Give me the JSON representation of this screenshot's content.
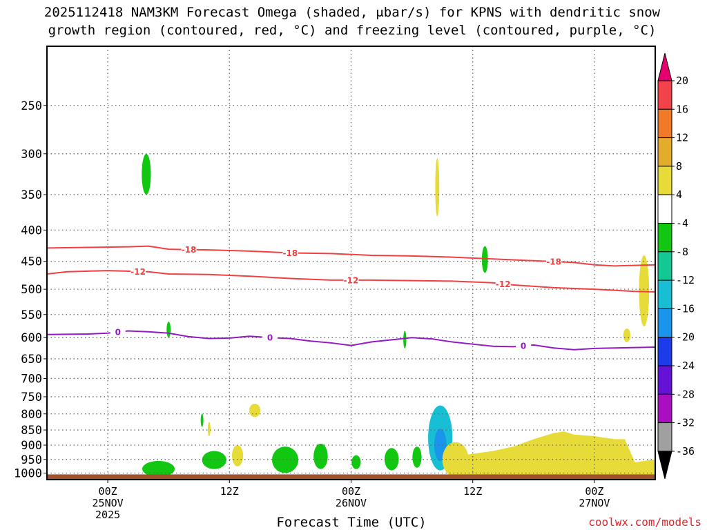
{
  "chart_data": {
    "type": "area",
    "title_line1": "2025112418 NAM3KM Forecast Omega (shaded, μbar/s) for KPNS with dendritic snow",
    "title_line2": "growth region (contoured, red, °C) and freezing level (contoured, purple, °C)",
    "xlabel": "Forecast Time (UTC)",
    "credit": "coolwx.com/models",
    "x_range_hours": [
      -6,
      54
    ],
    "y_scale": "log",
    "y_range_hPa": [
      200,
      1025
    ],
    "yticks": [
      250,
      300,
      350,
      400,
      450,
      500,
      550,
      600,
      650,
      700,
      750,
      800,
      850,
      900,
      950,
      1000
    ],
    "xticks": [
      {
        "hour": 0,
        "lines": [
          "00Z",
          "25NOV",
          "2025"
        ]
      },
      {
        "hour": 12,
        "lines": [
          "12Z"
        ]
      },
      {
        "hour": 24,
        "lines": [
          "00Z",
          "26NOV"
        ]
      },
      {
        "hour": 36,
        "lines": [
          "12Z"
        ]
      },
      {
        "hour": 48,
        "lines": [
          "00Z",
          "27NOV"
        ]
      }
    ],
    "grid": true,
    "colorbar": {
      "units": "μbar/s",
      "labels": [
        "20",
        "16",
        "12",
        "8",
        "4",
        "-4",
        "-8",
        "-12",
        "-16",
        "-20",
        "-24",
        "-28",
        "-32",
        "-36"
      ],
      "colors": [
        "#e5006e",
        "#f3434a",
        "#f07a27",
        "#e3ac2d",
        "#e6db38",
        "#ffffff",
        "#12c712",
        "#14c893",
        "#18bfd4",
        "#1b95ec",
        "#1c3cec",
        "#6413d6",
        "#a70fbf",
        "#a0a0a0",
        "#000000"
      ]
    },
    "contour_lines": [
      {
        "name": "-18",
        "color": "#f2403f",
        "points": [
          [
            -6,
            428
          ],
          [
            -2,
            427
          ],
          [
            2,
            426
          ],
          [
            4,
            425
          ],
          [
            6,
            430
          ],
          [
            10,
            431
          ],
          [
            14,
            433
          ],
          [
            18,
            436
          ],
          [
            22,
            437
          ],
          [
            26,
            440
          ],
          [
            30,
            441
          ],
          [
            34,
            443
          ],
          [
            38,
            446
          ],
          [
            42,
            449
          ],
          [
            46,
            452
          ],
          [
            48,
            456
          ],
          [
            50,
            458
          ],
          [
            54,
            456
          ]
        ],
        "labels_at_hours": [
          8,
          18,
          44
        ]
      },
      {
        "name": "-12",
        "color": "#f2403f",
        "points": [
          [
            -6,
            472
          ],
          [
            -4,
            468
          ],
          [
            0,
            466
          ],
          [
            4,
            468
          ],
          [
            6,
            472
          ],
          [
            10,
            473
          ],
          [
            14,
            476
          ],
          [
            18,
            480
          ],
          [
            22,
            483
          ],
          [
            26,
            483
          ],
          [
            30,
            484
          ],
          [
            34,
            485
          ],
          [
            38,
            488
          ],
          [
            40,
            492
          ],
          [
            44,
            497
          ],
          [
            48,
            500
          ],
          [
            52,
            504
          ],
          [
            54,
            505
          ]
        ],
        "labels_at_hours": [
          3,
          24,
          39
        ]
      },
      {
        "name": "0",
        "color": "#9418c4",
        "points": [
          [
            -6,
            593
          ],
          [
            -2,
            592
          ],
          [
            0,
            590
          ],
          [
            2,
            585
          ],
          [
            4,
            587
          ],
          [
            6,
            590
          ],
          [
            8,
            598
          ],
          [
            10,
            602
          ],
          [
            12,
            601
          ],
          [
            14,
            597
          ],
          [
            16,
            600
          ],
          [
            18,
            602
          ],
          [
            20,
            608
          ],
          [
            22,
            612
          ],
          [
            24,
            618
          ],
          [
            26,
            610
          ],
          [
            28,
            605
          ],
          [
            30,
            600
          ],
          [
            32,
            603
          ],
          [
            34,
            610
          ],
          [
            36,
            615
          ],
          [
            38,
            620
          ],
          [
            40,
            621
          ],
          [
            42,
            617
          ],
          [
            44,
            624
          ],
          [
            46,
            628
          ],
          [
            48,
            625
          ],
          [
            50,
            624
          ],
          [
            54,
            622
          ]
        ],
        "labels_at_hours": [
          1,
          16,
          41
        ]
      }
    ],
    "omega_regions": [
      {
        "value": -6,
        "color": "#12c712",
        "center": [
          3.8,
          330
        ],
        "half_width_h": 0.45,
        "span_hPa": [
          300,
          350
        ]
      },
      {
        "value": 5,
        "color": "#e6db38",
        "center": [
          32.5,
          340
        ],
        "half_width_h": 0.2,
        "span_hPa": [
          305,
          380
        ]
      },
      {
        "value": -6,
        "color": "#12c712",
        "center": [
          37.2,
          445
        ],
        "half_width_h": 0.3,
        "span_hPa": [
          425,
          470
        ]
      },
      {
        "value": 5,
        "color": "#e6db38",
        "center": [
          52.9,
          520
        ],
        "half_width_h": 0.5,
        "span_hPa": [
          440,
          575
        ]
      },
      {
        "value": 5,
        "color": "#e6db38",
        "center": [
          51.2,
          595
        ],
        "half_width_h": 0.35,
        "span_hPa": [
          580,
          610
        ]
      },
      {
        "value": -6,
        "color": "#12c712",
        "center": [
          6.0,
          580
        ],
        "half_width_h": 0.2,
        "span_hPa": [
          565,
          600
        ]
      },
      {
        "value": -6,
        "color": "#12c712",
        "center": [
          29.3,
          605
        ],
        "half_width_h": 0.15,
        "span_hPa": [
          585,
          625
        ]
      },
      {
        "value": 5,
        "color": "#e6db38",
        "center": [
          14.5,
          790
        ],
        "half_width_h": 0.55,
        "span_hPa": [
          770,
          810
        ]
      },
      {
        "value": -6,
        "color": "#12c712",
        "center": [
          9.3,
          820
        ],
        "half_width_h": 0.12,
        "span_hPa": [
          800,
          840
        ]
      },
      {
        "value": 5,
        "color": "#e6db38",
        "center": [
          10.0,
          845
        ],
        "half_width_h": 0.12,
        "span_hPa": [
          825,
          870
        ]
      },
      {
        "value": 7,
        "color": "#e6db38",
        "center": [
          12.8,
          940
        ],
        "half_width_h": 0.55,
        "span_hPa": [
          900,
          975
        ]
      },
      {
        "value": -8,
        "color": "#12c712",
        "center": [
          17.5,
          950
        ],
        "half_width_h": 1.3,
        "span_hPa": [
          905,
          1000
        ]
      },
      {
        "value": -8,
        "color": "#12c712",
        "center": [
          21.0,
          935
        ],
        "half_width_h": 0.7,
        "span_hPa": [
          895,
          985
        ]
      },
      {
        "value": -6,
        "color": "#12c712",
        "center": [
          24.5,
          960
        ],
        "half_width_h": 0.45,
        "span_hPa": [
          935,
          985
        ]
      },
      {
        "value": -8,
        "color": "#12c712",
        "center": [
          28.0,
          950
        ],
        "half_width_h": 0.7,
        "span_hPa": [
          910,
          990
        ]
      },
      {
        "value": -6,
        "color": "#12c712",
        "center": [
          30.5,
          945
        ],
        "half_width_h": 0.45,
        "span_hPa": [
          905,
          980
        ]
      },
      {
        "value": -14,
        "color": "#18bfd4",
        "center": [
          32.8,
          880
        ],
        "half_width_h": 1.2,
        "span_hPa": [
          775,
          990
        ]
      },
      {
        "value": 8,
        "color": "#e6db38",
        "center": [
          34.3,
          950
        ],
        "half_width_h": 1.3,
        "span_hPa": [
          890,
          1015
        ]
      },
      {
        "value": -6,
        "color": "#12c712",
        "center": [
          5.0,
          985
        ],
        "half_width_h": 1.6,
        "span_hPa": [
          955,
          1015
        ]
      },
      {
        "value": -6,
        "color": "#12c712",
        "center": [
          10.5,
          955
        ],
        "half_width_h": 1.2,
        "span_hPa": [
          920,
          985
        ]
      }
    ],
    "broad_positive_region": {
      "value": 5,
      "color": "#e6db38",
      "upper_edge": [
        [
          34,
          940
        ],
        [
          36,
          930
        ],
        [
          38,
          920
        ],
        [
          40,
          905
        ],
        [
          42,
          880
        ],
        [
          44,
          860
        ],
        [
          45,
          855
        ],
        [
          46,
          865
        ],
        [
          48,
          870
        ],
        [
          49,
          875
        ],
        [
          50,
          880
        ],
        [
          51,
          880
        ],
        [
          52,
          960
        ],
        [
          54,
          950
        ]
      ],
      "base_hPa": 1010
    },
    "ground": {
      "color": "#a0522d",
      "top_hPa": 1005
    }
  }
}
